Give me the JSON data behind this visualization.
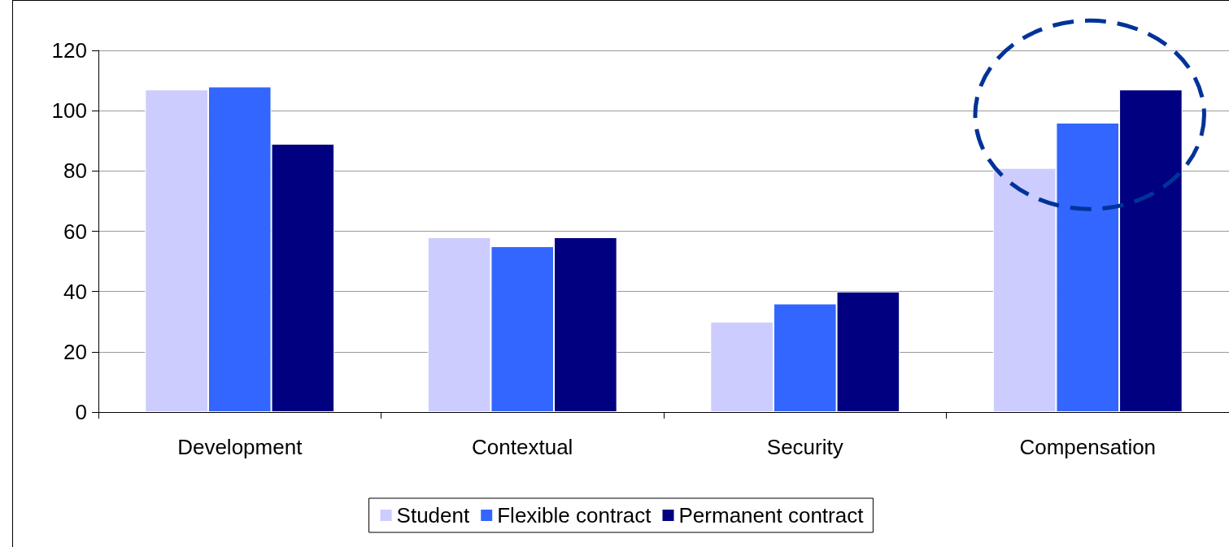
{
  "chart_data": {
    "type": "bar",
    "categories": [
      "Development",
      "Contextual",
      "Security",
      "Compensation"
    ],
    "series": [
      {
        "name": "Student",
        "color": "#ccccff",
        "values": [
          107,
          58,
          30,
          81
        ]
      },
      {
        "name": "Flexible contract",
        "color": "#3366ff",
        "values": [
          108,
          55,
          36,
          96
        ]
      },
      {
        "name": "Permanent contract",
        "color": "#000080",
        "values": [
          89,
          58,
          40,
          107
        ]
      }
    ],
    "ylim": [
      0,
      120
    ],
    "yticks": [
      0,
      20,
      40,
      60,
      80,
      100,
      120
    ],
    "grid": "y",
    "legend": "bottom"
  }
}
